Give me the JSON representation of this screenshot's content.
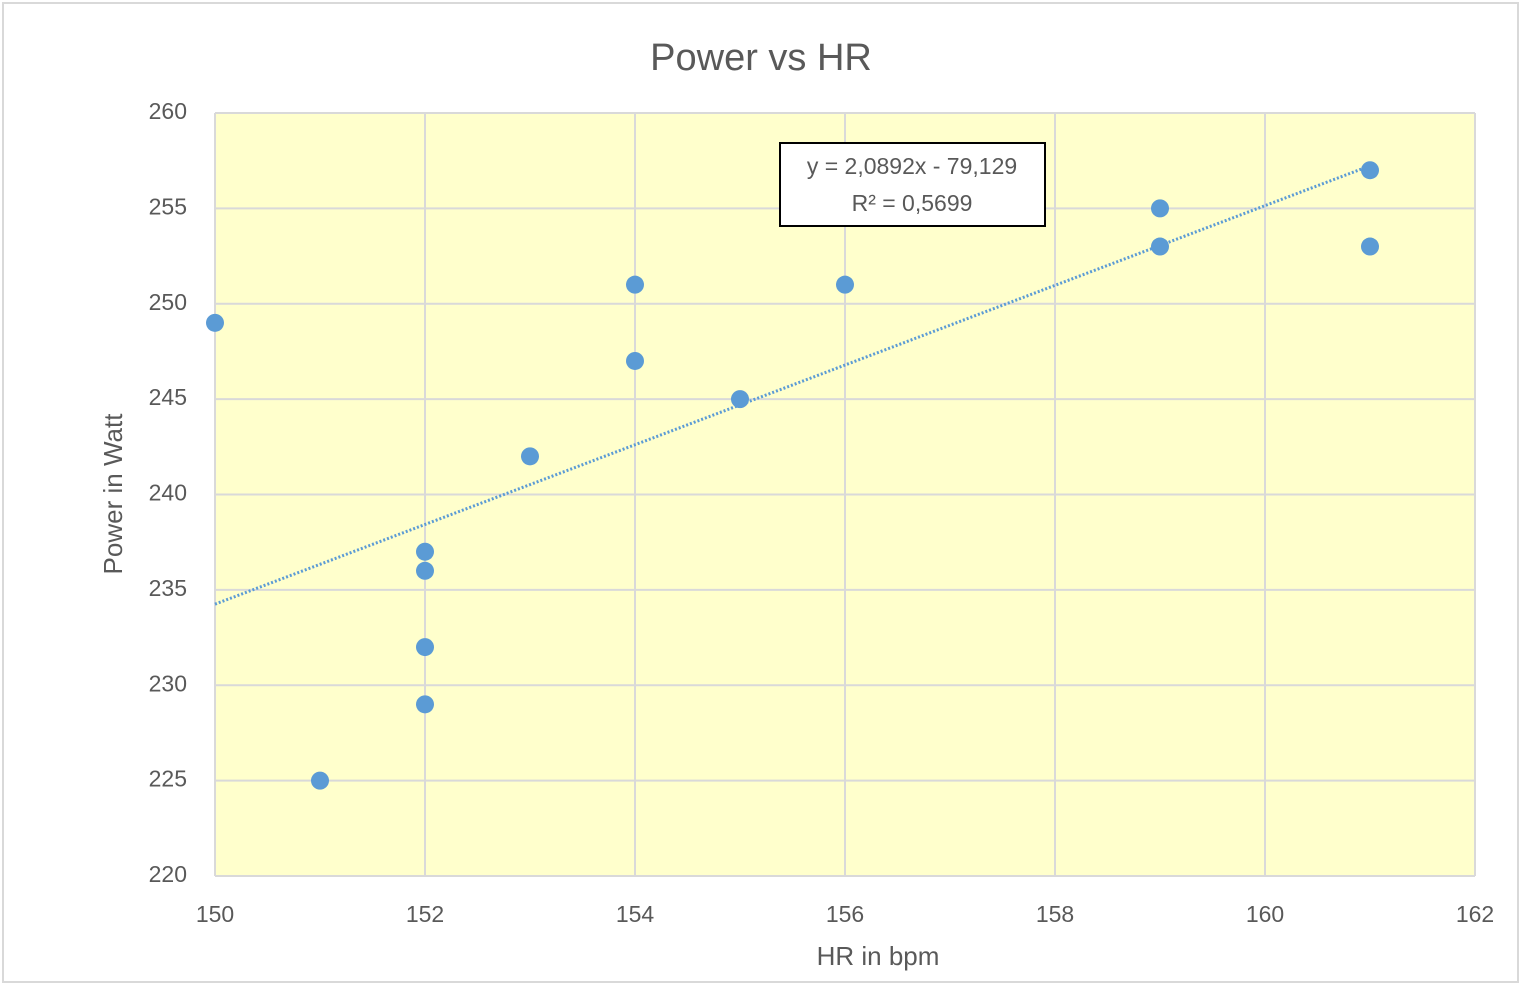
{
  "chart_data": {
    "type": "scatter",
    "title": "Power vs HR",
    "x_label": "HR in bpm",
    "y_label": "Power in Watt",
    "series": [
      {
        "name": "Power",
        "color": "#5b9bd5",
        "x": [
          150,
          151,
          152,
          152,
          152,
          152,
          153,
          154,
          154,
          155,
          156,
          159,
          159,
          161,
          161
        ],
        "values": [
          249,
          225,
          237,
          236,
          232,
          229,
          242,
          251,
          247,
          245,
          251,
          255,
          253,
          257,
          253
        ]
      }
    ],
    "trendline": {
      "slope": 2.0892,
      "intercept": -79.129,
      "color": "#5b9bd5",
      "label": "y = 2,0892x - 79,129",
      "r2_label": "R² = 0,5699"
    },
    "xlim": [
      150,
      162
    ],
    "xticks": [
      150,
      152,
      154,
      156,
      158,
      160,
      162
    ],
    "ylim": [
      220,
      260
    ],
    "yticks": [
      220,
      225,
      230,
      235,
      240,
      245,
      250,
      255,
      260
    ],
    "grid": true,
    "plot_background": "#ffffcc"
  }
}
